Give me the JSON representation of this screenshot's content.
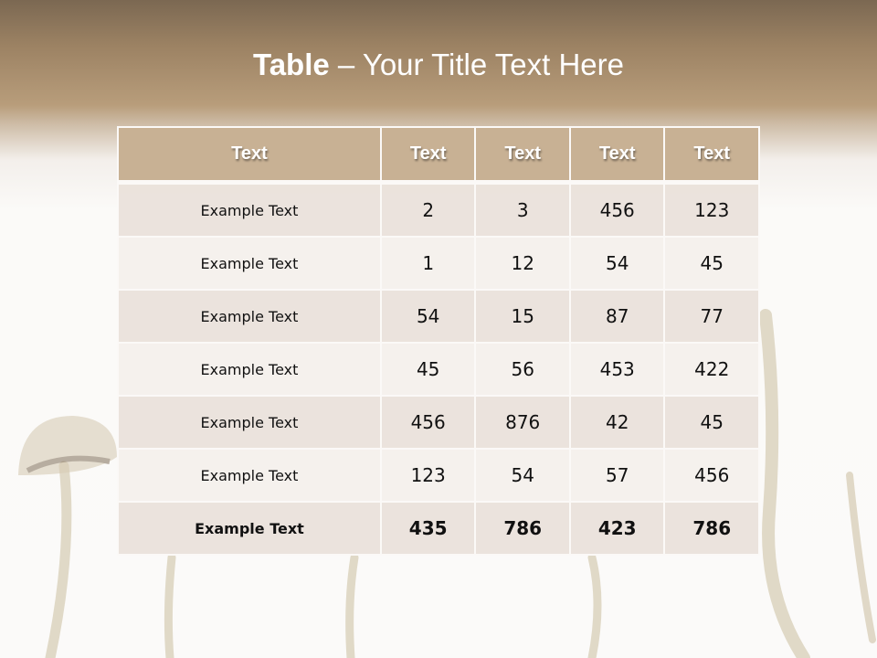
{
  "slide": {
    "title_bold": "Table",
    "title_rest": " – Your Title Text Here"
  },
  "table": {
    "headers": [
      "Text",
      "Text",
      "Text",
      "Text",
      "Text"
    ],
    "rows": [
      [
        "Example Text",
        "2",
        "3",
        "456",
        "123"
      ],
      [
        "Example Text",
        "1",
        "12",
        "54",
        "45"
      ],
      [
        "Example Text",
        "54",
        "15",
        "87",
        "77"
      ],
      [
        "Example Text",
        "45",
        "56",
        "453",
        "422"
      ],
      [
        "Example Text",
        "456",
        "876",
        "42",
        "45"
      ],
      [
        "Example Text",
        "123",
        "54",
        "57",
        "456"
      ],
      [
        "Example Text",
        "435",
        "786",
        "423",
        "786"
      ]
    ]
  },
  "colors": {
    "header_fill": "#c8b194",
    "row_odd": "#e9e1da",
    "row_even": "#f4f0ec",
    "title_band": "#9c8263"
  }
}
